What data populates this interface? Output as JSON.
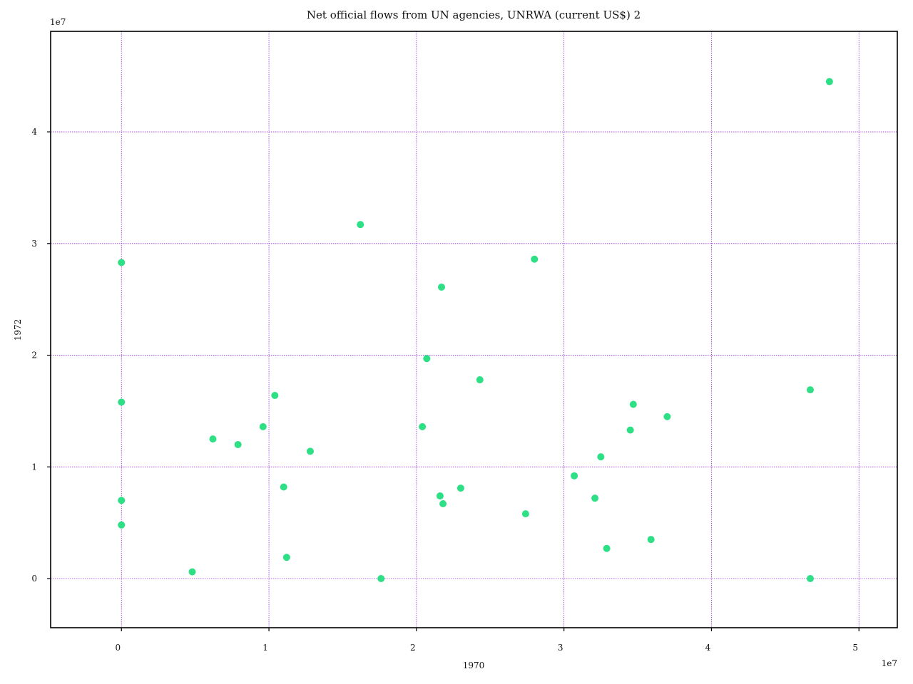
{
  "chart_data": {
    "type": "scatter",
    "title": "Net official flows from UN agencies, UNRWA (current US$) 2",
    "xlabel": "1970",
    "ylabel": "1972",
    "x_multiplier_label": "1e7",
    "y_multiplier_label": "1e7",
    "scale": 10000000,
    "xlim": [
      -4800000,
      52600000
    ],
    "ylim": [
      -4400000,
      49000000
    ],
    "x_ticks": [
      0,
      10000000,
      20000000,
      30000000,
      40000000,
      50000000
    ],
    "x_tick_labels": [
      "0",
      "1",
      "2",
      "3",
      "4",
      "5"
    ],
    "y_ticks": [
      0,
      10000000,
      20000000,
      30000000,
      40000000
    ],
    "y_tick_labels": [
      "0",
      "1",
      "2",
      "3",
      "4"
    ],
    "grid": true,
    "marker_color": "#2ee085",
    "grid_color": "#9b30d9",
    "points": [
      {
        "x": 0,
        "y": 28300000
      },
      {
        "x": 0,
        "y": 15800000
      },
      {
        "x": 0,
        "y": 7000000
      },
      {
        "x": 0,
        "y": 4800000
      },
      {
        "x": 4800000,
        "y": 600000
      },
      {
        "x": 6200000,
        "y": 12500000
      },
      {
        "x": 7900000,
        "y": 12000000
      },
      {
        "x": 9600000,
        "y": 13600000
      },
      {
        "x": 10400000,
        "y": 16400000
      },
      {
        "x": 11000000,
        "y": 8200000
      },
      {
        "x": 11200000,
        "y": 1900000
      },
      {
        "x": 12800000,
        "y": 11400000
      },
      {
        "x": 16200000,
        "y": 31700000
      },
      {
        "x": 17600000,
        "y": 0
      },
      {
        "x": 20400000,
        "y": 13600000
      },
      {
        "x": 20700000,
        "y": 19700000
      },
      {
        "x": 21600000,
        "y": 7400000
      },
      {
        "x": 21700000,
        "y": 26100000
      },
      {
        "x": 21800000,
        "y": 6700000
      },
      {
        "x": 23000000,
        "y": 8100000
      },
      {
        "x": 24300000,
        "y": 17800000
      },
      {
        "x": 27400000,
        "y": 5800000
      },
      {
        "x": 28000000,
        "y": 28600000
      },
      {
        "x": 30700000,
        "y": 9200000
      },
      {
        "x": 32100000,
        "y": 7200000
      },
      {
        "x": 32500000,
        "y": 10900000
      },
      {
        "x": 32900000,
        "y": 2700000
      },
      {
        "x": 34500000,
        "y": 13300000
      },
      {
        "x": 34700000,
        "y": 15600000
      },
      {
        "x": 35900000,
        "y": 3500000
      },
      {
        "x": 37000000,
        "y": 14500000
      },
      {
        "x": 46700000,
        "y": 16900000
      },
      {
        "x": 46700000,
        "y": 0
      },
      {
        "x": 48000000,
        "y": 44500000
      }
    ]
  }
}
